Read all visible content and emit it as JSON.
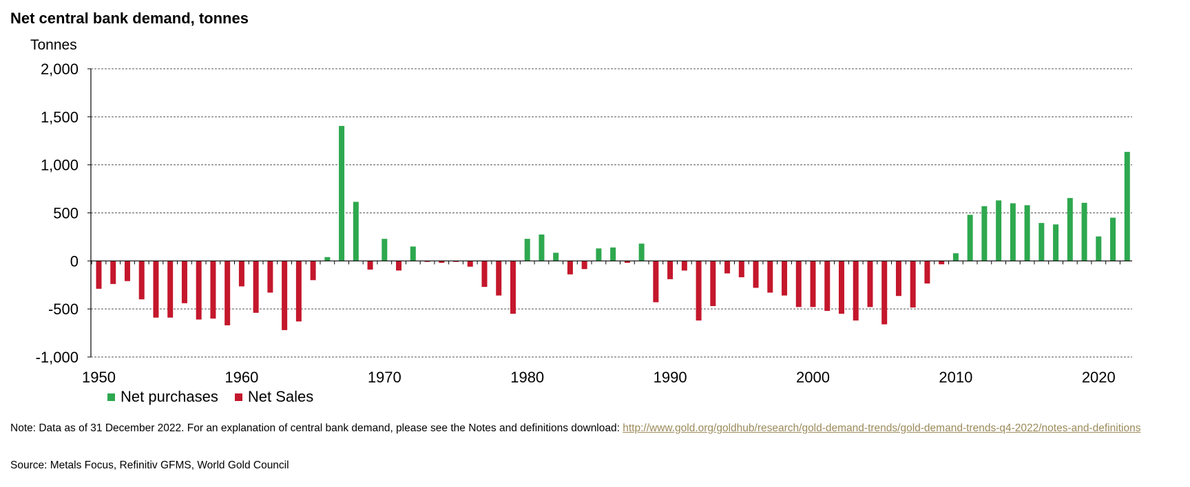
{
  "title": "Net central bank demand, tonnes",
  "note": {
    "text": "Note: Data as of 31 December 2022. For an explanation of central bank demand, please see the Notes and definitions download: ",
    "link": "http://www.gold.org/goldhub/research/gold-demand-trends/gold-demand-trends-q4-2022/notes-and-definitions"
  },
  "source": "Source: Metals Focus, Refinitiv GFMS, World Gold Council",
  "colors": {
    "purchases": "#2ea84f",
    "sales": "#c4172c"
  },
  "chart_data": {
    "type": "bar",
    "ylabel": "Tonnes",
    "ylim": [
      -1000,
      2000
    ],
    "yticks": [
      -1000,
      -500,
      0,
      500,
      1000,
      1500,
      2000
    ],
    "ytick_labels": [
      "-1,000",
      "-500",
      "0",
      "500",
      "1,000",
      "1,500",
      "2,000"
    ],
    "xticks": [
      1950,
      1960,
      1970,
      1980,
      1990,
      2000,
      2010,
      2020
    ],
    "xtick_labels": [
      "1950",
      "1960",
      "1970",
      "1980",
      "1990",
      "2000",
      "2010",
      "2020"
    ],
    "grid": true,
    "legend_position": "bottom-left",
    "legend": [
      "Net purchases",
      "Net Sales"
    ],
    "years": [
      1950,
      1951,
      1952,
      1953,
      1954,
      1955,
      1956,
      1957,
      1958,
      1959,
      1960,
      1961,
      1962,
      1963,
      1964,
      1965,
      1966,
      1967,
      1968,
      1969,
      1970,
      1971,
      1972,
      1973,
      1974,
      1975,
      1976,
      1977,
      1978,
      1979,
      1980,
      1981,
      1982,
      1983,
      1984,
      1985,
      1986,
      1987,
      1988,
      1989,
      1990,
      1991,
      1992,
      1993,
      1994,
      1995,
      1996,
      1997,
      1998,
      1999,
      2000,
      2001,
      2002,
      2003,
      2004,
      2005,
      2006,
      2007,
      2008,
      2009,
      2010,
      2011,
      2012,
      2013,
      2014,
      2015,
      2016,
      2017,
      2018,
      2019,
      2020,
      2021,
      2022
    ],
    "values": [
      -290,
      -240,
      -210,
      -400,
      -590,
      -590,
      -440,
      -610,
      -600,
      -670,
      -265,
      -540,
      -330,
      -720,
      -630,
      -200,
      40,
      1405,
      615,
      -90,
      230,
      -100,
      150,
      -10,
      -20,
      -10,
      -60,
      -270,
      -360,
      -550,
      230,
      275,
      85,
      -140,
      -85,
      130,
      140,
      -20,
      180,
      -430,
      -190,
      -100,
      -620,
      -470,
      -130,
      -170,
      -280,
      -330,
      -360,
      -480,
      -480,
      -520,
      -550,
      -620,
      -480,
      -660,
      -365,
      -485,
      -235,
      -35,
      80,
      480,
      570,
      630,
      600,
      580,
      395,
      380,
      655,
      605,
      255,
      450,
      1135
    ]
  }
}
